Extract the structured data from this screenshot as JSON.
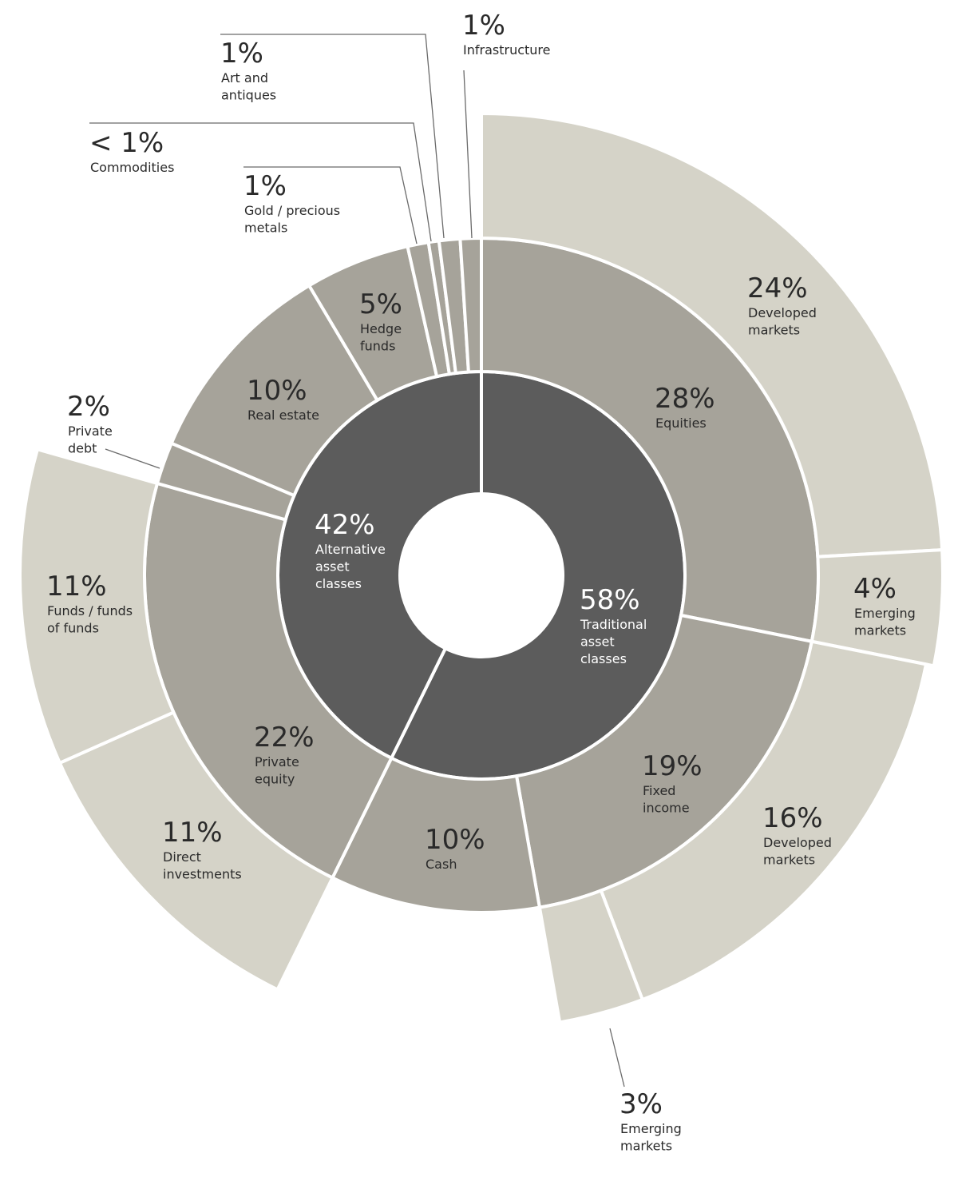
{
  "chart_data": {
    "type": "sunburst",
    "colors": {
      "inner": "#5c5c5c",
      "middle": "#a6a39a",
      "outer": "#d5d3c8",
      "text_dark": "#2a2a2a",
      "text_light": "#ffffff",
      "separator": "#ffffff"
    },
    "inner_ring": [
      {
        "id": "traditional",
        "value": 58,
        "pct_label": "58%",
        "label_lines": [
          "Traditional",
          "asset",
          "classes"
        ]
      },
      {
        "id": "alternative",
        "value": 42,
        "pct_label": "42%",
        "label_lines": [
          "Alternative",
          "asset",
          "classes"
        ]
      }
    ],
    "middle_ring": [
      {
        "id": "equities",
        "parent": "traditional",
        "value": 28,
        "pct_label": "28%",
        "label_lines": [
          "Equities"
        ]
      },
      {
        "id": "fixed-income",
        "parent": "traditional",
        "value": 19,
        "pct_label": "19%",
        "label_lines": [
          "Fixed",
          "income"
        ]
      },
      {
        "id": "cash",
        "parent": "traditional",
        "value": 10,
        "pct_label": "10%",
        "label_lines": [
          "Cash"
        ]
      },
      {
        "id": "private-equity",
        "parent": "alternative",
        "value": 22,
        "pct_label": "22%",
        "label_lines": [
          "Private",
          "equity"
        ]
      },
      {
        "id": "private-debt",
        "parent": "alternative",
        "value": 2,
        "pct_label": "2%",
        "label_lines": [
          "Private",
          "debt"
        ]
      },
      {
        "id": "real-estate",
        "parent": "alternative",
        "value": 10,
        "pct_label": "10%",
        "label_lines": [
          "Real estate"
        ]
      },
      {
        "id": "hedge-funds",
        "parent": "alternative",
        "value": 5,
        "pct_label": "5%",
        "label_lines": [
          "Hedge",
          "funds"
        ]
      },
      {
        "id": "gold",
        "parent": "alternative",
        "value": 1,
        "pct_label": "1%",
        "label_lines": [
          "Gold / precious",
          "metals"
        ]
      },
      {
        "id": "commodities",
        "parent": "alternative",
        "value": 0.5,
        "pct_label": "< 1%",
        "label_lines": [
          "Commodities"
        ]
      },
      {
        "id": "art",
        "parent": "alternative",
        "value": 1,
        "pct_label": "1%",
        "label_lines": [
          "Art and",
          "antiques"
        ]
      },
      {
        "id": "infrastructure",
        "parent": "alternative",
        "value": 1,
        "pct_label": "1%",
        "label_lines": [
          "Infrastructure"
        ]
      }
    ],
    "outer_ring": [
      {
        "id": "eq-developed",
        "parent": "equities",
        "value": 24,
        "pct_label": "24%",
        "label_lines": [
          "Developed",
          "markets"
        ]
      },
      {
        "id": "eq-emerging",
        "parent": "equities",
        "value": 4,
        "pct_label": "4%",
        "label_lines": [
          "Emerging",
          "markets"
        ]
      },
      {
        "id": "fi-developed",
        "parent": "fixed-income",
        "value": 16,
        "pct_label": "16%",
        "label_lines": [
          "Developed",
          "markets"
        ]
      },
      {
        "id": "fi-emerging",
        "parent": "fixed-income",
        "value": 3,
        "pct_label": "3%",
        "label_lines": [
          "Emerging",
          "markets"
        ]
      },
      {
        "id": "pe-direct",
        "parent": "private-equity",
        "value": 11,
        "pct_label": "11%",
        "label_lines": [
          "Direct",
          "investments"
        ]
      },
      {
        "id": "pe-funds",
        "parent": "private-equity",
        "value": 11,
        "pct_label": "11%",
        "label_lines": [
          "Funds / funds",
          "of funds"
        ]
      }
    ]
  }
}
